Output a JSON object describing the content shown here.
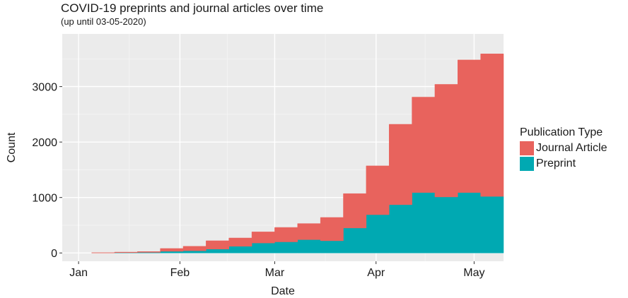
{
  "chart_data": {
    "type": "area",
    "stacked": true,
    "step": true,
    "title": "COVID-19 preprints and journal articles over time",
    "subtitle": "(up until 03-05-2020)",
    "xlabel": "Date",
    "ylabel": "Count",
    "xlim": [
      "2019-12-27",
      "2020-05-10"
    ],
    "ylim": [
      -150,
      3950
    ],
    "x_ticks": [
      {
        "date": "2020-01-01",
        "label": "Jan"
      },
      {
        "date": "2020-02-01",
        "label": "Feb"
      },
      {
        "date": "2020-03-01",
        "label": "Mar"
      },
      {
        "date": "2020-04-01",
        "label": "Apr"
      },
      {
        "date": "2020-05-01",
        "label": "May"
      }
    ],
    "y_ticks": [
      0,
      1000,
      2000,
      3000
    ],
    "grid": true,
    "legend_title": "Publication Type",
    "legend_position": "right",
    "x": [
      "2020-01-05",
      "2020-01-12",
      "2020-01-19",
      "2020-01-26",
      "2020-02-02",
      "2020-02-09",
      "2020-02-16",
      "2020-02-23",
      "2020-03-01",
      "2020-03-08",
      "2020-03-15",
      "2020-03-22",
      "2020-03-29",
      "2020-04-05",
      "2020-04-12",
      "2020-04-19",
      "2020-04-26",
      "2020-05-03"
    ],
    "series": [
      {
        "name": "Preprint",
        "color": "#00A9B2",
        "values": [
          0,
          5,
          10,
          30,
          40,
          70,
          120,
          180,
          200,
          240,
          220,
          450,
          690,
          870,
          1090,
          1010,
          1090,
          1020
        ]
      },
      {
        "name": "Journal Article",
        "color": "#E8635D",
        "values": [
          5,
          10,
          15,
          50,
          80,
          150,
          150,
          200,
          260,
          290,
          420,
          620,
          880,
          1450,
          1720,
          2030,
          2390,
          2570
        ]
      }
    ]
  }
}
